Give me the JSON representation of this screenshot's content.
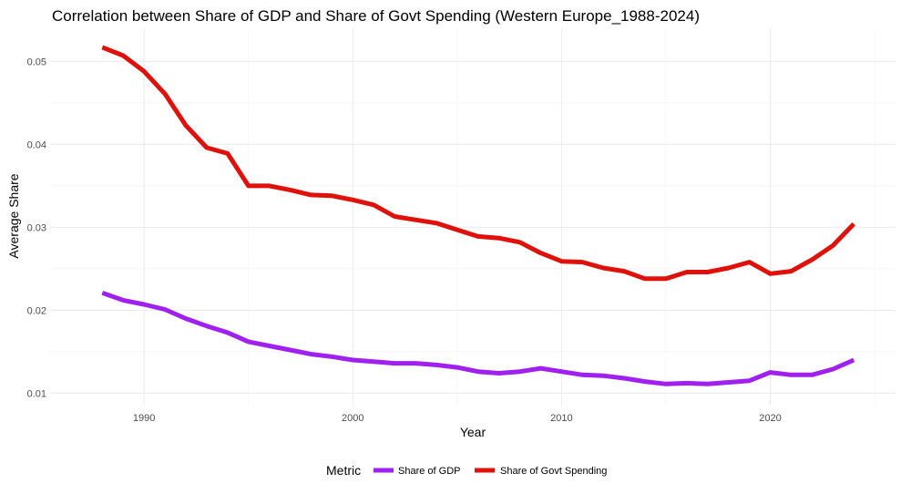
{
  "chart_data": {
    "type": "line",
    "title": "Correlation between Share of GDP and Share of Govt Spending (Western Europe_1988-2024)",
    "xlabel": "Year",
    "ylabel": "Average Share",
    "xlim": [
      1985.5,
      2026
    ],
    "ylim": [
      0.0085,
      0.054
    ],
    "xticks": [
      1990,
      2000,
      2010,
      2020
    ],
    "yticks": [
      0.01,
      0.02,
      0.03,
      0.04,
      0.05
    ],
    "xtick_labels": [
      "1990",
      "2000",
      "2010",
      "2020"
    ],
    "ytick_labels": [
      "0.01",
      "0.02",
      "0.03",
      "0.04",
      "0.05"
    ],
    "grid": true,
    "legend_position": "bottom",
    "legend_title": "Metric",
    "x": [
      1988,
      1989,
      1990,
      1991,
      1992,
      1993,
      1994,
      1995,
      1996,
      1997,
      1998,
      1999,
      2000,
      2001,
      2002,
      2003,
      2004,
      2005,
      2006,
      2007,
      2008,
      2009,
      2010,
      2011,
      2012,
      2013,
      2014,
      2015,
      2016,
      2017,
      2018,
      2019,
      2020,
      2021,
      2022,
      2023,
      2024
    ],
    "series": [
      {
        "name": "Share of GDP",
        "color": "#a020f0",
        "values": [
          0.0221,
          0.0212,
          0.0207,
          0.0201,
          0.019,
          0.0181,
          0.0173,
          0.0162,
          0.0157,
          0.0152,
          0.0147,
          0.0144,
          0.014,
          0.0138,
          0.0136,
          0.0136,
          0.0134,
          0.0131,
          0.0126,
          0.0124,
          0.0126,
          0.013,
          0.0126,
          0.0122,
          0.0121,
          0.0118,
          0.0114,
          0.0111,
          0.0112,
          0.0111,
          0.0113,
          0.0115,
          0.0125,
          0.0122,
          0.0122,
          0.0129,
          0.014
        ]
      },
      {
        "name": "Share of Govt Spending",
        "color": "#e0100a",
        "values": [
          0.0517,
          0.0507,
          0.0488,
          0.0461,
          0.0423,
          0.0396,
          0.0389,
          0.035,
          0.035,
          0.0345,
          0.0339,
          0.0338,
          0.0333,
          0.0327,
          0.0313,
          0.0309,
          0.0305,
          0.0297,
          0.0289,
          0.0287,
          0.0282,
          0.0269,
          0.0259,
          0.0258,
          0.0251,
          0.0247,
          0.0238,
          0.0238,
          0.0246,
          0.0246,
          0.0251,
          0.0258,
          0.0244,
          0.0247,
          0.0261,
          0.0278,
          0.0304
        ]
      }
    ]
  }
}
